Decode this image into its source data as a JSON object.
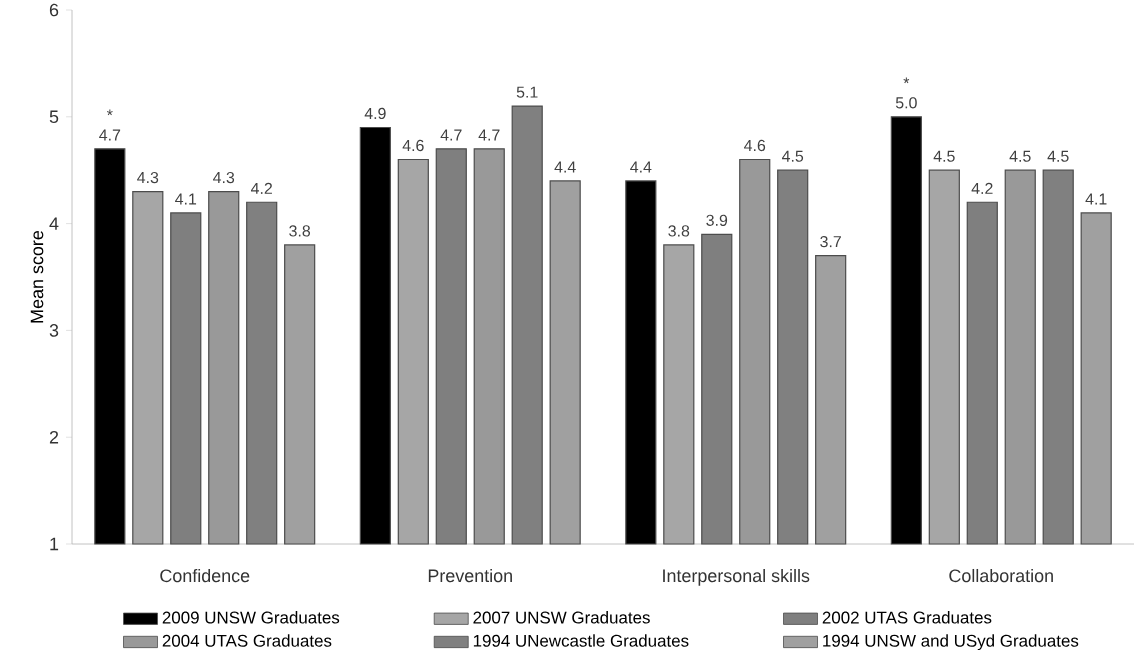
{
  "chart_data": {
    "type": "bar",
    "ylabel": "Mean score",
    "categories": [
      "Confidence",
      "Prevention",
      "Interpersonal skills",
      "Collaboration"
    ],
    "series": [
      {
        "name": "2009 UNSW Graduates",
        "color": "#000000",
        "values": [
          4.7,
          4.9,
          4.4,
          5.0
        ],
        "value_labels": [
          "4.7",
          "4.9",
          "4.4",
          "5.0"
        ]
      },
      {
        "name": "2007 UNSW Graduates",
        "color": "#a6a6a6",
        "values": [
          4.3,
          4.6,
          3.8,
          4.5
        ],
        "value_labels": [
          "4.3",
          "4.6",
          "3.8",
          "4.5"
        ]
      },
      {
        "name": "2002 UTAS Graduates",
        "color": "#7f7f7f",
        "values": [
          4.1,
          4.7,
          3.9,
          4.2
        ],
        "value_labels": [
          "4.1",
          "4.7",
          "3.9",
          "4.2"
        ]
      },
      {
        "name": "2004 UTAS Graduates",
        "color": "#999999",
        "values": [
          4.3,
          4.7,
          4.6,
          4.5
        ],
        "value_labels": [
          "4.3",
          "4.7",
          "4.6",
          "4.5"
        ]
      },
      {
        "name": "1994 UNewcastle Graduates",
        "color": "#808080",
        "values": [
          4.2,
          5.1,
          4.5,
          4.5
        ],
        "value_labels": [
          "4.2",
          "5.1",
          "4.5",
          "4.5"
        ]
      },
      {
        "name": "1994 UNSW and USyd Graduates",
        "color": "#a0a0a0",
        "values": [
          3.8,
          4.4,
          3.7,
          4.1
        ],
        "value_labels": [
          "3.8",
          "4.4",
          "3.7",
          "4.1"
        ]
      }
    ],
    "ylim": [
      1,
      6
    ],
    "yticks": [
      1,
      2,
      3,
      4,
      5,
      6
    ],
    "grid": false,
    "legend": "bottom",
    "annotations": [
      "*",
      "*"
    ]
  }
}
